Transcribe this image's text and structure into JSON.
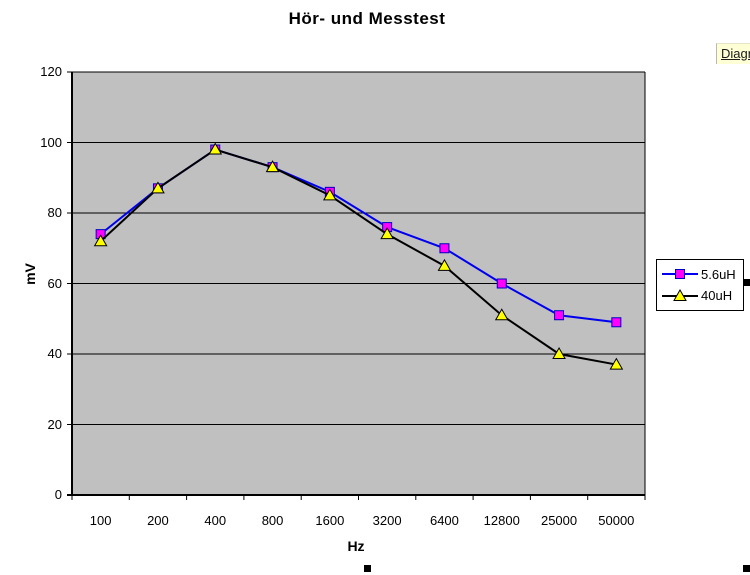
{
  "window": {
    "background": "#FFFFFF"
  },
  "toolbar_fragment": {
    "label": "Diagr",
    "background": "#FFFFD6"
  },
  "icons": {
    "selection_handle": "black-square-drag-handle"
  },
  "chart_data": {
    "type": "line",
    "title": "Hör- und Messtest",
    "xlabel": "Hz",
    "ylabel": "mV",
    "categories": [
      "100",
      "200",
      "400",
      "800",
      "1600",
      "3200",
      "6400",
      "12800",
      "25000",
      "50000"
    ],
    "series": [
      {
        "name": "5.6uH",
        "values": [
          74,
          87,
          98,
          93,
          86,
          76,
          70,
          60,
          51,
          49
        ],
        "line_color": "#0000EE",
        "marker": "square",
        "marker_fill": "#FF00FF",
        "marker_stroke": "#0000C0"
      },
      {
        "name": "40uH",
        "values": [
          72,
          87,
          98,
          93,
          85,
          74,
          65,
          51,
          40,
          37
        ],
        "line_color": "#000000",
        "marker": "triangle-up",
        "marker_fill": "#FFFF00",
        "marker_stroke": "#000000"
      }
    ],
    "ylim": [
      0,
      120
    ],
    "ytick_labels": [
      "120",
      "100",
      "80",
      "60",
      "40",
      "20",
      "0"
    ],
    "grid": true,
    "plot_bg": "#C0C0C0",
    "legend_position": "right"
  }
}
